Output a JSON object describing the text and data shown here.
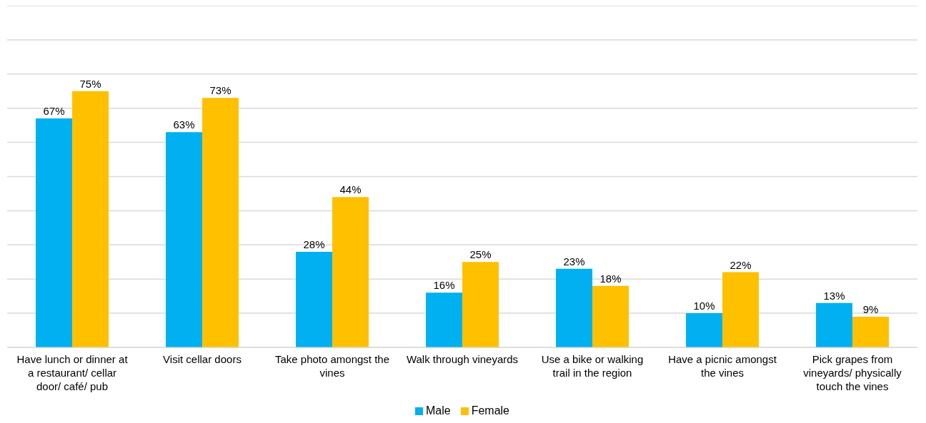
{
  "chart_data": {
    "type": "bar",
    "categories": [
      "Have lunch or dinner at a restaurant/ cellar door/ café/ pub",
      "Visit cellar doors",
      "Take photo amongst the vines",
      "Walk through vineyards",
      "Use a bike or walking trail in the region",
      "Have a picnic amongst the vines",
      "Pick grapes from vineyards/ physically touch the vines"
    ],
    "series": [
      {
        "name": "Male",
        "color": "#00b0f0",
        "values": [
          67,
          63,
          28,
          16,
          23,
          10,
          13
        ],
        "value_labels": [
          "67%",
          "63%",
          "28%",
          "16%",
          "23%",
          "10%",
          "13%"
        ]
      },
      {
        "name": "Female",
        "color": "#ffc000",
        "values": [
          75,
          73,
          44,
          25,
          18,
          22,
          9
        ],
        "value_labels": [
          "75%",
          "73%",
          "44%",
          "25%",
          "18%",
          "22%",
          "9%"
        ]
      }
    ],
    "ylim": [
      0,
      100
    ],
    "tick_labels": "x",
    "grid": "y",
    "legend": "bottom"
  }
}
